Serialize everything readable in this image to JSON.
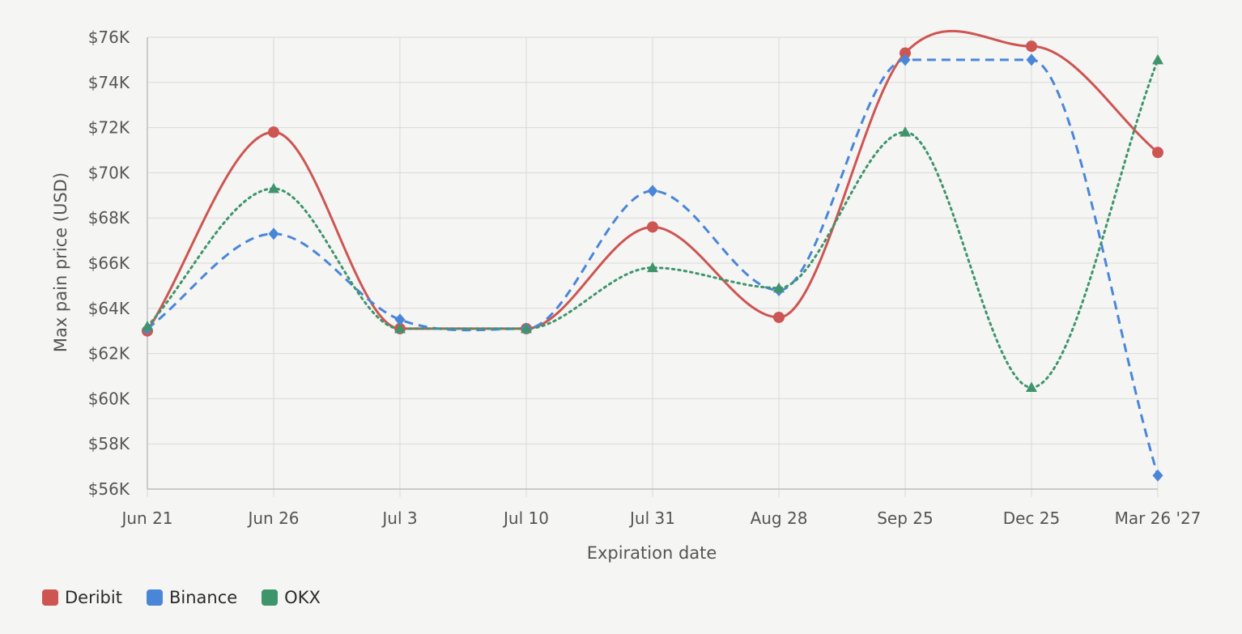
{
  "chart_data": {
    "type": "line",
    "xlabel": "Expiration date",
    "ylabel": "Max pain price (USD)",
    "categories": [
      "Jun 21",
      "Jun 26",
      "Jul 3",
      "Jul 10",
      "Jul 31",
      "Aug 28",
      "Sep 25",
      "Dec 25",
      "Mar 26 '27"
    ],
    "ylim": [
      56000,
      76000
    ],
    "yticks": [
      56000,
      58000,
      60000,
      62000,
      64000,
      66000,
      68000,
      70000,
      72000,
      74000,
      76000
    ],
    "ytick_labels": [
      "$56K",
      "$58K",
      "$60K",
      "$62K",
      "$64K",
      "$66K",
      "$68K",
      "$70K",
      "$72K",
      "$74K",
      "$76K"
    ],
    "grid": true,
    "legend_position": "bottom-left",
    "series": [
      {
        "name": "Deribit",
        "color": "#cd5652",
        "line_style": "solid",
        "marker": "circle",
        "values": [
          63000,
          71800,
          63100,
          63100,
          67600,
          63600,
          75300,
          75600,
          70900
        ]
      },
      {
        "name": "Binance",
        "color": "#4a86d8",
        "line_style": "dashed",
        "marker": "diamond",
        "values": [
          63100,
          67300,
          63500,
          63100,
          69200,
          64800,
          75000,
          75000,
          56600
        ]
      },
      {
        "name": "OKX",
        "color": "#3f956b",
        "line_style": "dotted",
        "marker": "triangle",
        "values": [
          63200,
          69300,
          63100,
          63100,
          65800,
          64900,
          71800,
          60500,
          75000
        ]
      }
    ]
  }
}
